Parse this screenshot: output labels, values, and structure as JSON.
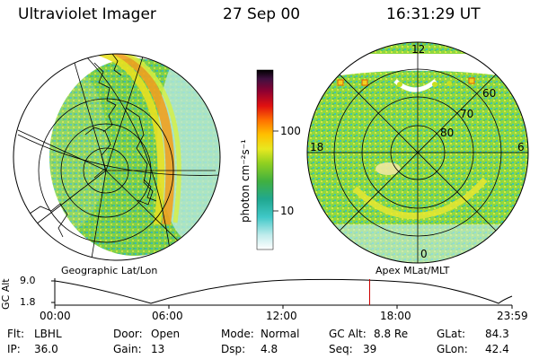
{
  "header": {
    "instrument": "Ultraviolet Imager",
    "date": "27 Sep 00",
    "time": "16:31:29 UT"
  },
  "colorbar": {
    "label": "photon cm⁻²s⁻¹",
    "ticks": [
      "100",
      "10"
    ]
  },
  "left_panel": {
    "caption": "Geographic Lat/Lon"
  },
  "right_panel": {
    "caption": "Apex MLat/MLT",
    "mlt_labels": [
      "12",
      "18",
      "6",
      "0"
    ],
    "mlat_labels": [
      "60",
      "70",
      "80"
    ]
  },
  "timeline": {
    "ylabel": "GC Alt",
    "ymax": "9.0",
    "ymin": "1.8",
    "x_ticks": [
      "00:00",
      "06:00",
      "12:00",
      "18:00",
      "23:59"
    ],
    "current_time_fraction": 0.6886
  },
  "footer": {
    "flt_label": "Flt:",
    "flt_value": "LBHL",
    "ip_label": "IP:",
    "ip_value": "36.0",
    "door_label": "Door:",
    "door_value": "Open",
    "gain_label": "Gain:",
    "gain_value": "13",
    "mode_label": "Mode:",
    "mode_value": "Normal",
    "dsp_label": "Dsp:",
    "dsp_value": "4.8",
    "gcalt_label": "GC Alt:",
    "gcalt_value": "8.8 Re",
    "seq_label": "Seq:",
    "seq_value": "39",
    "glat_label": "GLat:",
    "glat_value": "84.3",
    "glon_label": "GLon:",
    "glon_value": "42.4"
  },
  "colors": {
    "scale": [
      "#ffffff",
      "#6fd8d8",
      "#28b4a8",
      "#2ca02c",
      "#7ed321",
      "#d8e830",
      "#f0f000",
      "#ffa000",
      "#e02020",
      "#900020",
      "#400040",
      "#000000"
    ],
    "timeline_marker": "#cc0000"
  }
}
